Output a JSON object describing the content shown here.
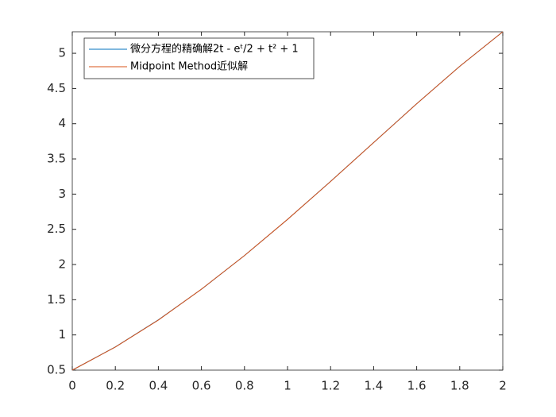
{
  "chart_data": {
    "type": "line",
    "x": [
      0,
      0.2,
      0.4,
      0.6,
      0.8,
      1.0,
      1.2,
      1.4,
      1.6,
      1.8,
      2.0
    ],
    "series": [
      {
        "name": "微分方程的精确解2t - eᵗ/2 + t² + 1",
        "color": "#0072bd",
        "values": [
          0.5,
          0.8293,
          1.2141,
          1.6489,
          2.1272,
          2.6409,
          3.1799,
          3.7324,
          4.2835,
          4.8152,
          5.3055
        ]
      },
      {
        "name": "Midpoint Method近似解",
        "color": "#d95319",
        "values": [
          0.5,
          0.828,
          1.21136,
          1.64986,
          2.12723,
          2.64122,
          3.17887,
          3.73131,
          4.28268,
          4.81539,
          5.30538
        ]
      }
    ],
    "xlim": [
      0,
      2
    ],
    "xticks": [
      0,
      0.2,
      0.4,
      0.6,
      0.8,
      1,
      1.2,
      1.4,
      1.6,
      1.8,
      2
    ],
    "ylim": [
      0.5,
      5.3055
    ],
    "yticks": [
      0.5,
      1,
      1.5,
      2,
      2.5,
      3,
      3.5,
      4,
      4.5,
      5
    ],
    "legend": "upper-left",
    "grid": false
  }
}
